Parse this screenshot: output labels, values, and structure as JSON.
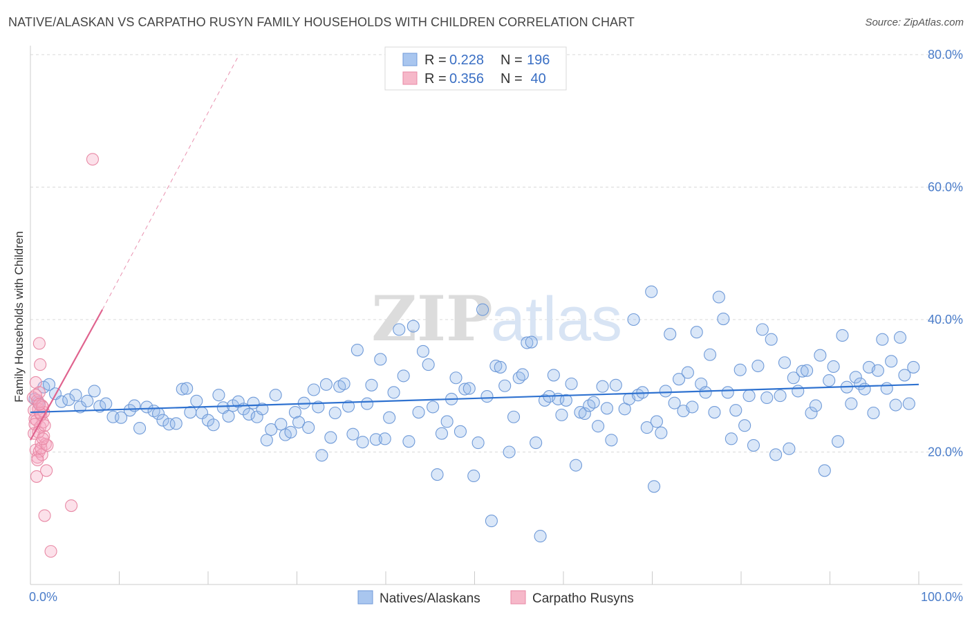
{
  "title": "NATIVE/ALASKAN VS CARPATHO RUSYN FAMILY HOUSEHOLDS WITH CHILDREN CORRELATION CHART",
  "source": "Source: ZipAtlas.com",
  "watermark": {
    "zip": "ZIP",
    "atlas": "atlas"
  },
  "legend": {
    "rows": [
      {
        "r_label": "R = ",
        "r_value": "0.228",
        "n_label": "N = ",
        "n_value": "196",
        "color": "#a9c6ef",
        "stroke": "#6f9ad8"
      },
      {
        "r_label": "R = ",
        "r_value": "0.356",
        "n_label": "N = ",
        "n_value": " 40",
        "color": "#f6b8c9",
        "stroke": "#e889a5"
      }
    ]
  },
  "bottom_legend": [
    {
      "label": "Natives/Alaskans",
      "color": "#a9c6ef",
      "stroke": "#6f9ad8"
    },
    {
      "label": "Carpatho Rusyns",
      "color": "#f6b8c9",
      "stroke": "#e889a5"
    }
  ],
  "colors": {
    "blue_point_fill": "rgba(150,185,235,0.35)",
    "blue_point_stroke": "#6f9ad8",
    "pink_point_fill": "rgba(245,170,195,0.35)",
    "pink_point_stroke": "#e889a5",
    "blue_line": "#2f72d0",
    "pink_line": "#e0638e",
    "grid": "#d9d9d9",
    "tick_label": "#4a7cc9"
  },
  "chart_data": {
    "type": "scatter",
    "title": "NATIVE/ALASKAN VS CARPATHO RUSYN FAMILY HOUSEHOLDS WITH CHILDREN CORRELATION CHART",
    "xlabel": "",
    "ylabel": "Family Households with Children",
    "xlim": [
      0,
      100
    ],
    "ylim": [
      0,
      80
    ],
    "x_tick_labels": [
      "0.0%",
      "100.0%"
    ],
    "y_ticks": [
      20,
      40,
      60,
      80
    ],
    "y_tick_labels": [
      "20.0%",
      "40.0%",
      "60.0%",
      "80.0%"
    ],
    "grid": true,
    "legend_position": "top-center",
    "series": [
      {
        "name": "Natives/Alaskans",
        "trend": {
          "x": [
            0,
            100
          ],
          "y": [
            26.0,
            30.2
          ]
        },
        "points": [
          [
            0.5,
            28.0
          ],
          [
            0.9,
            27.5
          ],
          [
            1.5,
            29.8
          ],
          [
            2.1,
            30.2
          ],
          [
            2.8,
            28.8
          ],
          [
            3.5,
            27.6
          ],
          [
            4.3,
            27.9
          ],
          [
            5.1,
            28.6
          ],
          [
            5.6,
            26.8
          ],
          [
            6.4,
            27.7
          ],
          [
            7.2,
            29.2
          ],
          [
            7.8,
            26.9
          ],
          [
            8.5,
            27.3
          ],
          [
            9.3,
            25.3
          ],
          [
            10.2,
            25.2
          ],
          [
            11.2,
            26.3
          ],
          [
            11.7,
            27.0
          ],
          [
            12.3,
            23.6
          ],
          [
            13.1,
            26.8
          ],
          [
            13.9,
            26.2
          ],
          [
            14.4,
            25.8
          ],
          [
            14.9,
            24.8
          ],
          [
            15.6,
            24.2
          ],
          [
            16.4,
            24.3
          ],
          [
            17.1,
            29.5
          ],
          [
            17.6,
            29.6
          ],
          [
            18.0,
            26.0
          ],
          [
            18.7,
            27.7
          ],
          [
            19.3,
            25.9
          ],
          [
            20.0,
            24.8
          ],
          [
            20.6,
            24.1
          ],
          [
            21.2,
            28.6
          ],
          [
            21.7,
            26.7
          ],
          [
            22.3,
            25.4
          ],
          [
            22.8,
            27.0
          ],
          [
            23.4,
            27.6
          ],
          [
            24.0,
            26.5
          ],
          [
            24.6,
            25.7
          ],
          [
            25.1,
            27.4
          ],
          [
            25.5,
            25.3
          ],
          [
            26.1,
            26.5
          ],
          [
            26.6,
            21.8
          ],
          [
            27.1,
            23.4
          ],
          [
            27.6,
            28.6
          ],
          [
            28.2,
            24.2
          ],
          [
            28.7,
            22.6
          ],
          [
            29.3,
            23.0
          ],
          [
            29.8,
            26.0
          ],
          [
            30.2,
            24.5
          ],
          [
            30.8,
            27.4
          ],
          [
            31.3,
            23.7
          ],
          [
            31.9,
            29.4
          ],
          [
            32.4,
            26.8
          ],
          [
            32.8,
            19.5
          ],
          [
            33.3,
            30.2
          ],
          [
            33.8,
            22.2
          ],
          [
            34.3,
            25.9
          ],
          [
            34.8,
            29.9
          ],
          [
            35.3,
            30.3
          ],
          [
            35.8,
            26.9
          ],
          [
            36.3,
            22.7
          ],
          [
            36.8,
            35.4
          ],
          [
            37.4,
            21.5
          ],
          [
            37.9,
            27.3
          ],
          [
            38.4,
            30.1
          ],
          [
            38.9,
            21.9
          ],
          [
            39.4,
            34.0
          ],
          [
            39.9,
            22.0
          ],
          [
            40.4,
            25.2
          ],
          [
            40.9,
            29.0
          ],
          [
            41.5,
            38.5
          ],
          [
            42.0,
            31.5
          ],
          [
            42.6,
            21.6
          ],
          [
            43.1,
            39.0
          ],
          [
            43.7,
            26.0
          ],
          [
            44.2,
            35.2
          ],
          [
            44.8,
            33.2
          ],
          [
            45.3,
            26.8
          ],
          [
            45.8,
            16.6
          ],
          [
            46.3,
            22.8
          ],
          [
            46.9,
            24.6
          ],
          [
            47.4,
            28.0
          ],
          [
            47.9,
            31.2
          ],
          [
            48.4,
            23.1
          ],
          [
            48.9,
            29.5
          ],
          [
            49.4,
            29.6
          ],
          [
            49.9,
            16.4
          ],
          [
            50.4,
            21.4
          ],
          [
            50.9,
            41.5
          ],
          [
            51.4,
            28.4
          ],
          [
            51.9,
            9.6
          ],
          [
            52.4,
            33.0
          ],
          [
            52.9,
            32.8
          ],
          [
            53.4,
            30.0
          ],
          [
            53.9,
            20.0
          ],
          [
            54.4,
            25.3
          ],
          [
            55.0,
            31.2
          ],
          [
            55.4,
            31.7
          ],
          [
            55.9,
            36.5
          ],
          [
            56.4,
            36.6
          ],
          [
            56.9,
            21.4
          ],
          [
            57.4,
            7.3
          ],
          [
            57.9,
            27.8
          ],
          [
            58.4,
            28.4
          ],
          [
            58.9,
            31.6
          ],
          [
            59.4,
            28.0
          ],
          [
            59.8,
            25.6
          ],
          [
            60.3,
            27.8
          ],
          [
            60.9,
            30.3
          ],
          [
            61.4,
            18.0
          ],
          [
            61.9,
            26.0
          ],
          [
            62.4,
            25.8
          ],
          [
            62.9,
            27.0
          ],
          [
            63.4,
            27.5
          ],
          [
            63.9,
            23.9
          ],
          [
            64.4,
            29.9
          ],
          [
            64.9,
            26.6
          ],
          [
            65.4,
            21.8
          ],
          [
            65.9,
            30.1
          ],
          [
            66.9,
            26.5
          ],
          [
            67.4,
            28.0
          ],
          [
            67.9,
            40.0
          ],
          [
            68.4,
            28.6
          ],
          [
            68.9,
            29.0
          ],
          [
            69.4,
            23.7
          ],
          [
            69.9,
            44.2
          ],
          [
            70.2,
            14.8
          ],
          [
            70.5,
            24.6
          ],
          [
            71.0,
            22.9
          ],
          [
            71.5,
            29.2
          ],
          [
            72.0,
            37.8
          ],
          [
            72.5,
            27.4
          ],
          [
            73.0,
            31.0
          ],
          [
            73.5,
            26.2
          ],
          [
            74.0,
            32.0
          ],
          [
            74.5,
            26.8
          ],
          [
            75.0,
            38.1
          ],
          [
            75.5,
            30.3
          ],
          [
            76.0,
            29.0
          ],
          [
            76.5,
            34.7
          ],
          [
            77.0,
            26.0
          ],
          [
            77.5,
            43.4
          ],
          [
            78.0,
            40.1
          ],
          [
            78.5,
            29.0
          ],
          [
            78.9,
            22.0
          ],
          [
            79.4,
            26.3
          ],
          [
            79.9,
            32.4
          ],
          [
            80.4,
            24.0
          ],
          [
            80.9,
            28.5
          ],
          [
            81.4,
            21.0
          ],
          [
            81.9,
            33.0
          ],
          [
            82.4,
            38.5
          ],
          [
            82.9,
            28.2
          ],
          [
            83.4,
            37.0
          ],
          [
            83.9,
            19.6
          ],
          [
            84.4,
            28.5
          ],
          [
            84.9,
            33.5
          ],
          [
            85.4,
            20.5
          ],
          [
            85.9,
            31.2
          ],
          [
            86.4,
            29.2
          ],
          [
            86.9,
            32.2
          ],
          [
            87.4,
            32.3
          ],
          [
            87.9,
            25.9
          ],
          [
            88.4,
            27.0
          ],
          [
            88.9,
            34.6
          ],
          [
            89.4,
            17.2
          ],
          [
            89.9,
            30.8
          ],
          [
            90.4,
            32.9
          ],
          [
            90.9,
            21.6
          ],
          [
            91.4,
            37.6
          ],
          [
            91.9,
            29.8
          ],
          [
            92.4,
            27.3
          ],
          [
            92.9,
            31.3
          ],
          [
            93.4,
            30.3
          ],
          [
            93.9,
            29.5
          ],
          [
            94.4,
            32.8
          ],
          [
            94.9,
            25.9
          ],
          [
            95.4,
            32.3
          ],
          [
            95.9,
            37.0
          ],
          [
            96.4,
            29.6
          ],
          [
            96.9,
            33.7
          ],
          [
            97.4,
            27.1
          ],
          [
            97.9,
            37.3
          ],
          [
            98.4,
            31.6
          ],
          [
            98.9,
            27.3
          ],
          [
            99.4,
            32.8
          ]
        ]
      },
      {
        "name": "Carpatho Rusyns",
        "trend": {
          "x": [
            0,
            8.1
          ],
          "y": [
            21.8,
            41.5
          ],
          "dashed_extension_to": [
            23.5,
            80
          ]
        },
        "points": [
          [
            0.3,
            28.2
          ],
          [
            0.4,
            26.3
          ],
          [
            0.5,
            25.0
          ],
          [
            0.6,
            30.5
          ],
          [
            0.7,
            24.8
          ],
          [
            0.8,
            27.8
          ],
          [
            0.9,
            26.5
          ],
          [
            1.0,
            29.0
          ],
          [
            1.1,
            23.8
          ],
          [
            1.2,
            25.6
          ],
          [
            1.3,
            27.0
          ],
          [
            1.4,
            24.5
          ],
          [
            1.5,
            26.0
          ],
          [
            0.4,
            22.8
          ],
          [
            0.6,
            20.3
          ],
          [
            0.8,
            19.2
          ],
          [
            1.0,
            20.1
          ],
          [
            1.2,
            21.4
          ],
          [
            1.3,
            19.6
          ],
          [
            1.5,
            22.4
          ],
          [
            1.7,
            21.2
          ],
          [
            0.7,
            16.3
          ],
          [
            1.8,
            17.2
          ],
          [
            1.6,
            10.4
          ],
          [
            2.3,
            5.0
          ],
          [
            4.6,
            11.9
          ],
          [
            1.0,
            36.4
          ],
          [
            1.1,
            33.2
          ],
          [
            7.0,
            64.2
          ],
          [
            1.4,
            26.8
          ],
          [
            0.5,
            24.2
          ],
          [
            0.9,
            23.0
          ],
          [
            1.1,
            25.9
          ],
          [
            1.6,
            24.0
          ],
          [
            0.8,
            18.8
          ],
          [
            1.2,
            20.6
          ],
          [
            1.9,
            21.0
          ],
          [
            1.4,
            22.0
          ],
          [
            0.6,
            28.6
          ],
          [
            1.0,
            27.2
          ]
        ]
      }
    ]
  }
}
